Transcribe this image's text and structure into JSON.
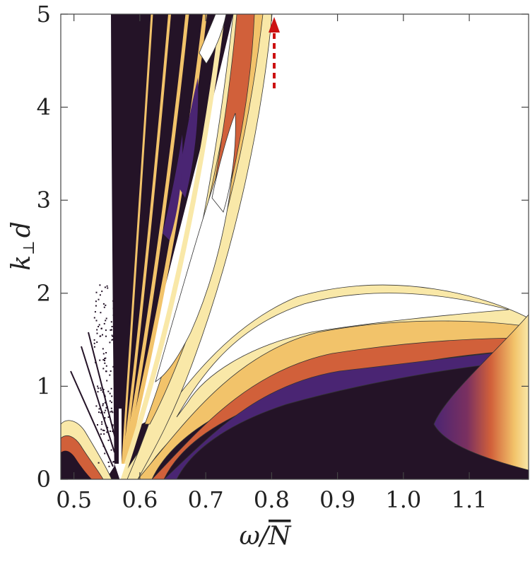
{
  "chart_data": {
    "type": "heatmap",
    "title": "",
    "xlabel": {
      "main": "ω/",
      "bar": "N"
    },
    "ylabel": {
      "main": "k",
      "sub": "⊥",
      "tail": "d"
    },
    "xlim": [
      0.48,
      1.19
    ],
    "ylim": [
      0,
      5
    ],
    "x_ticks": [
      0.5,
      0.6,
      0.7,
      0.8,
      0.9,
      1.0,
      1.1
    ],
    "x_tick_labels": [
      "0.5",
      "0.6",
      "0.7",
      "0.8",
      "0.9",
      "1.0",
      "1.1"
    ],
    "y_ticks": [
      0,
      1,
      2,
      3,
      4,
      5
    ],
    "y_tick_labels": [
      "0",
      "1",
      "2",
      "3",
      "4",
      "5"
    ],
    "colormap": [
      "#241327",
      "#4a2573",
      "#6a2d8a",
      "#a3425a",
      "#d1603a",
      "#e8923a",
      "#f2c36a",
      "#f9e8a8",
      "#ffffff"
    ],
    "contour_line_color": "#333333",
    "annotations": [
      {
        "type": "arrow",
        "direction": "down",
        "color": "#ffffff",
        "x": 0.57,
        "y_from": 0.7,
        "y_to": 0.02
      },
      {
        "type": "arrow",
        "direction": "up",
        "color": "#cc1111",
        "style": "dashed",
        "x": 0.8,
        "y_from": 4.2,
        "y_to": 4.95
      }
    ]
  }
}
